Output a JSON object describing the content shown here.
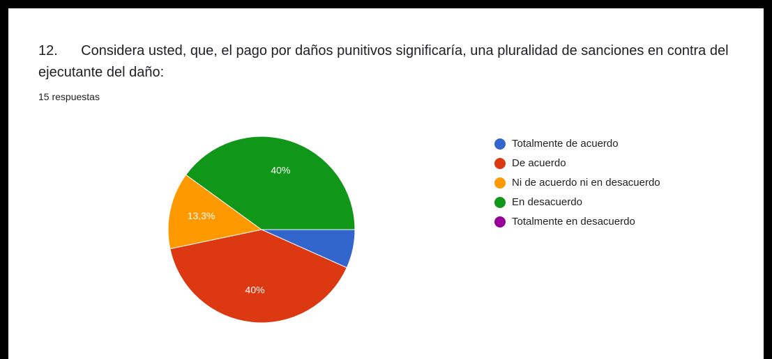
{
  "chart_data": {
    "type": "pie",
    "title": "12.      Considera usted, que, el pago por daños punitivos significaría, una pluralidad de sanciones en contra del ejecutante del daño:",
    "subtitle": "15 respuestas",
    "categories": [
      "Totalmente de acuerdo",
      "De acuerdo",
      "Ni de acuerdo ni en desacuerdo",
      "En desacuerdo",
      "Totalmente en desacuerdo"
    ],
    "values": [
      6.7,
      40,
      13.3,
      40,
      0
    ],
    "value_labels": [
      null,
      "40%",
      "13,3%",
      "40%",
      null
    ],
    "colors": [
      "#3366cc",
      "#dc3912",
      "#ff9900",
      "#109618",
      "#990099"
    ],
    "legend": "right"
  }
}
